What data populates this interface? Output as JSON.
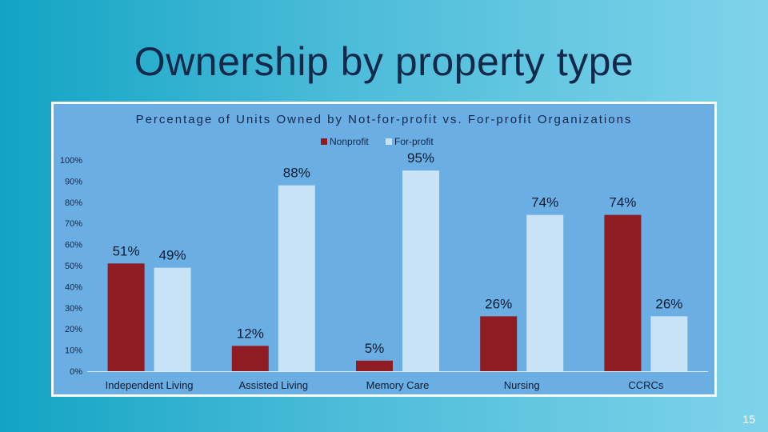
{
  "slide": {
    "title": "Ownership by property type",
    "page_number": "15"
  },
  "colors": {
    "nonprofit": "#8e1c22",
    "forprofit": "#c8e2f6",
    "chart_background": "#6aaee3",
    "text": "#14274a"
  },
  "chart_data": {
    "type": "bar",
    "title": "Percentage of Units Owned by Not-for-profit vs. For-profit Organizations",
    "categories": [
      "Independent Living",
      "Assisted Living",
      "Memory Care",
      "Nursing",
      "CCRCs"
    ],
    "series": [
      {
        "name": "Nonprofit",
        "values": [
          51,
          12,
          5,
          26,
          74
        ],
        "labels": [
          "51%",
          "12%",
          "5%",
          "26%",
          "74%"
        ]
      },
      {
        "name": "For-profit",
        "values": [
          49,
          88,
          95,
          74,
          26
        ],
        "labels": [
          "49%",
          "88%",
          "95%",
          "74%",
          "26%"
        ]
      }
    ],
    "y_ticks": [
      "0%",
      "10%",
      "20%",
      "30%",
      "40%",
      "50%",
      "60%",
      "70%",
      "80%",
      "90%",
      "100%"
    ],
    "ylim": [
      0,
      100
    ],
    "legend_position": "top",
    "grid": false
  }
}
